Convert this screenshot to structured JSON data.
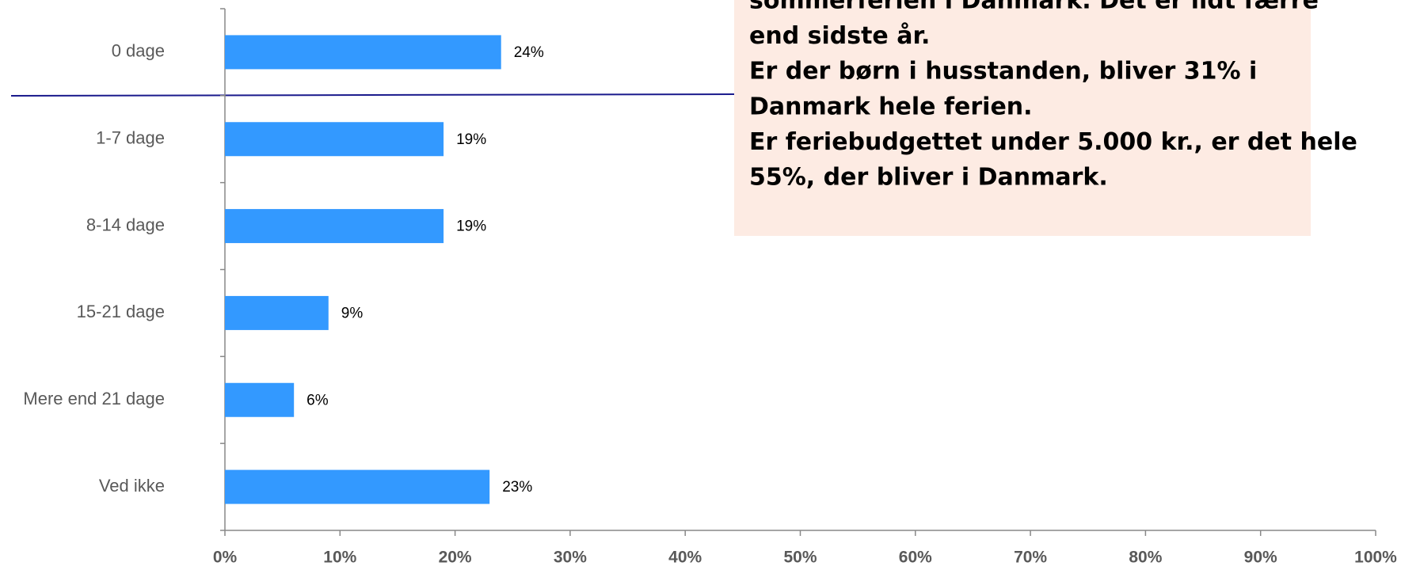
{
  "chart_data": {
    "type": "bar",
    "orientation": "horizontal",
    "categories": [
      "0 dage",
      "1-7 dage",
      "8-14 dage",
      "15-21 dage",
      "Mere end 21 dage",
      "Ved ikke"
    ],
    "values": [
      24,
      19,
      19,
      9,
      6,
      23
    ],
    "value_labels": [
      "24%",
      "19%",
      "19%",
      "9%",
      "6%",
      "23%"
    ],
    "color": "#3399ff",
    "xlim": [
      0,
      100
    ],
    "xticks": [
      {
        "value": 0,
        "label": "0%"
      },
      {
        "value": 10,
        "label": "10%"
      },
      {
        "value": 20,
        "label": "20%"
      },
      {
        "value": 30,
        "label": "30%"
      },
      {
        "value": 40,
        "label": "40%"
      },
      {
        "value": 50,
        "label": "50%"
      },
      {
        "value": 60,
        "label": "60%"
      },
      {
        "value": 70,
        "label": "70%"
      },
      {
        "value": 80,
        "label": "80%"
      },
      {
        "value": 90,
        "label": "90%"
      },
      {
        "value": 100,
        "label": "100%"
      }
    ],
    "annotation": [
      "sommerferien i Danmark. Det er lidt færre",
      "end sidste år.",
      "Er der børn i husstanden, bliver 31% i",
      "Danmark hele ferien.",
      "Er feriebudgettet under 5.000 kr., er det hele",
      "55%, der bliver i Danmark."
    ]
  }
}
